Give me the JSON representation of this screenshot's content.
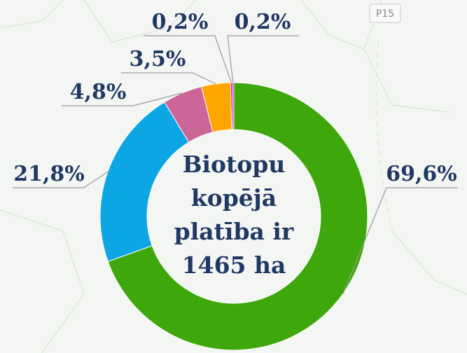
{
  "map_label": "P15",
  "chart_data": {
    "type": "donut",
    "center_text": [
      "Biotopu",
      "kopējā",
      "platība ir",
      "1465 ha"
    ],
    "values": [
      69.6,
      21.8,
      4.8,
      3.5,
      0.2,
      0.2
    ],
    "value_labels": [
      "69,6%",
      "21,8%",
      "4,8%",
      "3,5%",
      "0,2%",
      "0,2%"
    ],
    "colors": [
      "#3ea70b",
      "#0ca6e4",
      "#cc6699",
      "#ffa500",
      "#ee0000",
      "#b300e6"
    ]
  }
}
